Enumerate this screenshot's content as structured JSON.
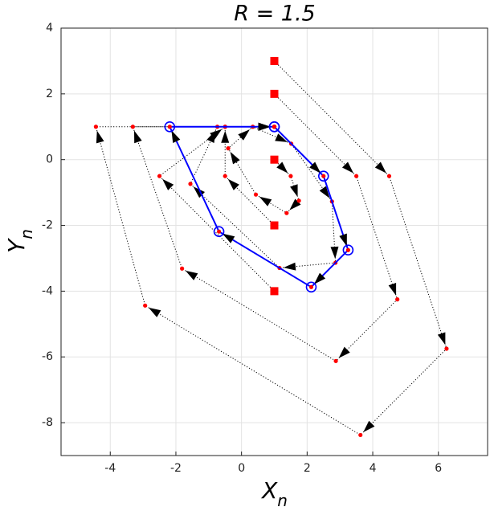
{
  "chart_data": {
    "type": "scatter",
    "title": "R = 1.5",
    "xlabel": {
      "text": "X",
      "subscript": "n"
    },
    "ylabel": {
      "text": "Y",
      "subscript": "n"
    },
    "xlim": [
      -5.5,
      7.5
    ],
    "ylim": [
      -9,
      4
    ],
    "xticks": [
      -4,
      -2,
      0,
      2,
      4,
      6
    ],
    "yticks": [
      -8,
      -6,
      -4,
      -2,
      0,
      2,
      4
    ],
    "grid": true,
    "series": [
      {
        "color": "#000000",
        "point_color": "#ff0000",
        "line": "dotted",
        "marker": "dot",
        "start_marker": "square",
        "arrows": true,
        "x": [
          1,
          4.5,
          6.25,
          3.625,
          -2.9375,
          -4.4375,
          1
        ],
        "y": [
          3,
          -0.5,
          -5.75,
          -8.375,
          -4.4375,
          1,
          1
        ]
      },
      {
        "color": "#000000",
        "point_color": "#ff0000",
        "line": "dotted",
        "marker": "dot",
        "start_marker": "square",
        "arrows": true,
        "x": [
          1,
          3.5,
          4.75,
          2.875,
          -1.8125,
          -3.3125,
          1
        ],
        "y": [
          2,
          -0.5,
          -4.25,
          -6.125,
          -3.3125,
          1,
          1
        ]
      },
      {
        "color": "#000000",
        "point_color": "#ff0000",
        "line": "dotted",
        "marker": "dot",
        "start_marker": "square",
        "arrows": true,
        "x": [
          1,
          1.5,
          1.75,
          1.375,
          0.4375,
          -0.40625,
          0.34375,
          1.515625,
          2.7578,
          2.863,
          1.158,
          -1.558,
          -0.737,
          1
        ],
        "y": [
          0,
          -0.5,
          -1.25,
          -1.625,
          -1.0625,
          0.34375,
          1,
          0.484375,
          -1.2734,
          -3.137,
          -3.295,
          -0.737,
          1,
          1
        ]
      },
      {
        "color": "#000000",
        "point_color": "#ff0000",
        "line": "dotted",
        "marker": "dot",
        "start_marker": "square",
        "arrows": true,
        "x": [
          1,
          -0.5,
          -0.5,
          1
        ],
        "y": [
          -2,
          -0.5,
          1,
          1
        ]
      },
      {
        "color": "#000000",
        "point_color": "#ff0000",
        "line": "dotted",
        "marker": "dot",
        "start_marker": "square",
        "arrows": true,
        "x": [
          1,
          -2.5,
          -0.5,
          1
        ],
        "y": [
          -4,
          -0.5,
          1,
          1
        ]
      },
      {
        "color": "#0000ff",
        "point_color": "#ff0000",
        "line": "solid",
        "marker": "circle",
        "arrows": true,
        "x": [
          1,
          2.5,
          3.25,
          2.125,
          -0.6875,
          -2.1875,
          1
        ],
        "y": [
          1,
          -0.5,
          -2.75,
          -3.875,
          -2.1875,
          1,
          1
        ]
      }
    ]
  }
}
